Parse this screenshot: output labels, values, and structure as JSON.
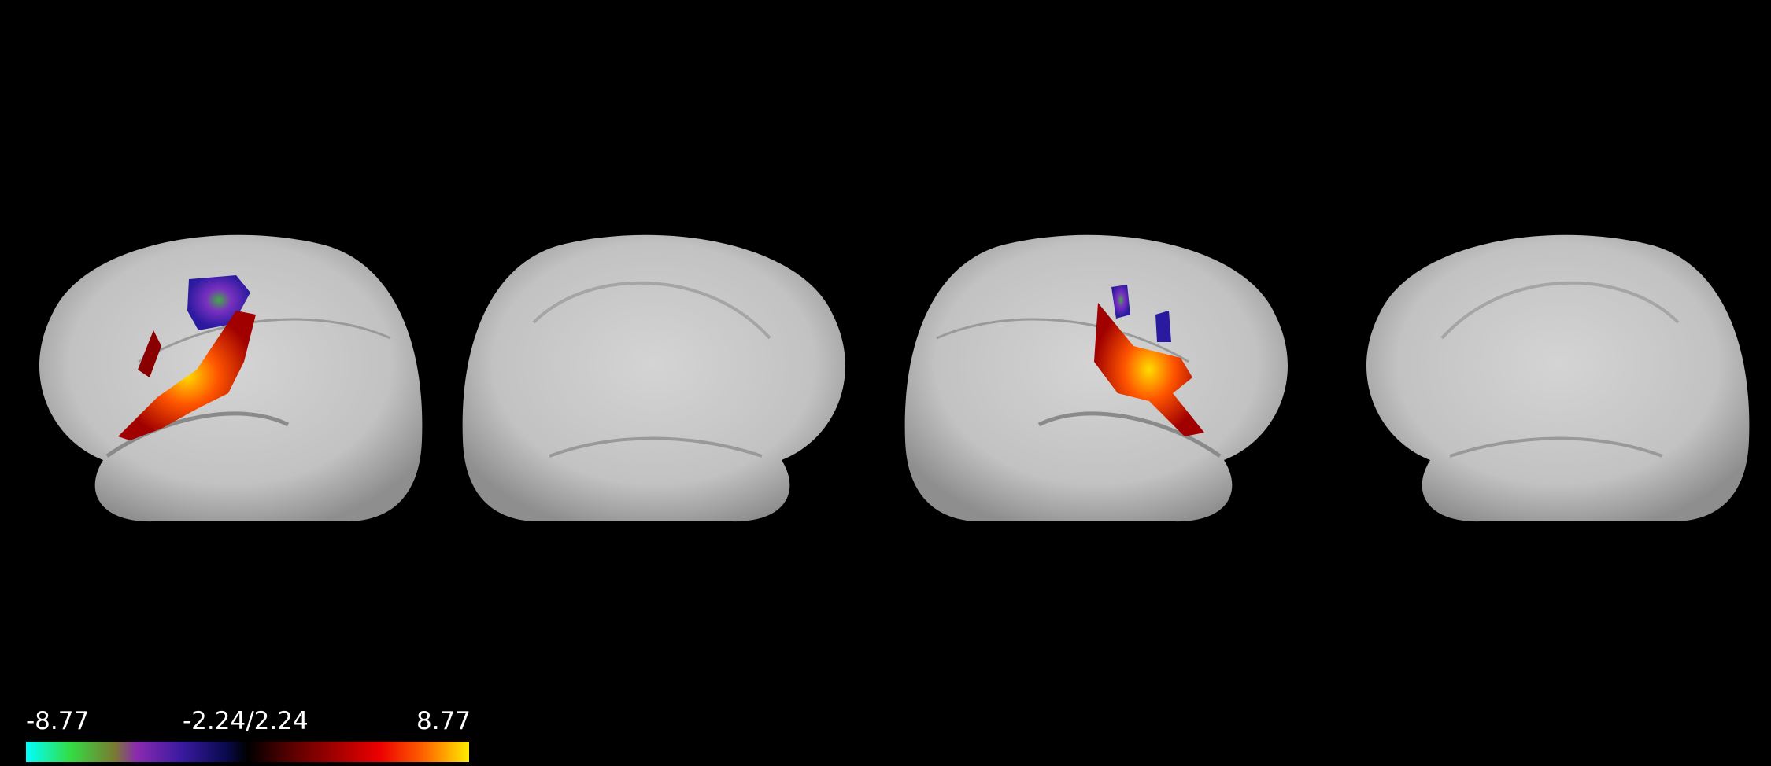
{
  "colorbar": {
    "labels": [
      "-8.77",
      "-2.24/2.24",
      "8.77"
    ]
  }
}
